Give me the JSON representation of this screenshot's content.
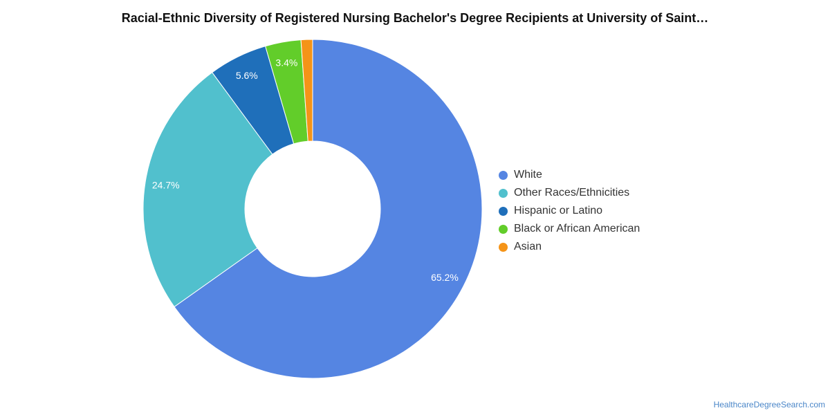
{
  "chart_data": {
    "type": "pie",
    "donut": true,
    "title": "Racial-Ethnic Diversity of Registered Nursing Bachelor's Degree Recipients at University of Saint…",
    "legend_position": "right",
    "slices": [
      {
        "name": "White",
        "value": 65.2,
        "label": "65.2%",
        "color": "#5585e2"
      },
      {
        "name": "Other Races/Ethnicities",
        "value": 24.7,
        "label": "24.7%",
        "color": "#51c0cd"
      },
      {
        "name": "Hispanic or Latino",
        "value": 5.6,
        "label": "5.6%",
        "color": "#1f6fba"
      },
      {
        "name": "Black or African American",
        "value": 3.4,
        "label": "3.4%",
        "color": "#62cd2a"
      },
      {
        "name": "Asian",
        "value": 1.1,
        "label": "",
        "color": "#f59418"
      }
    ]
  },
  "source": "HealthcareDegreeSearch.com"
}
